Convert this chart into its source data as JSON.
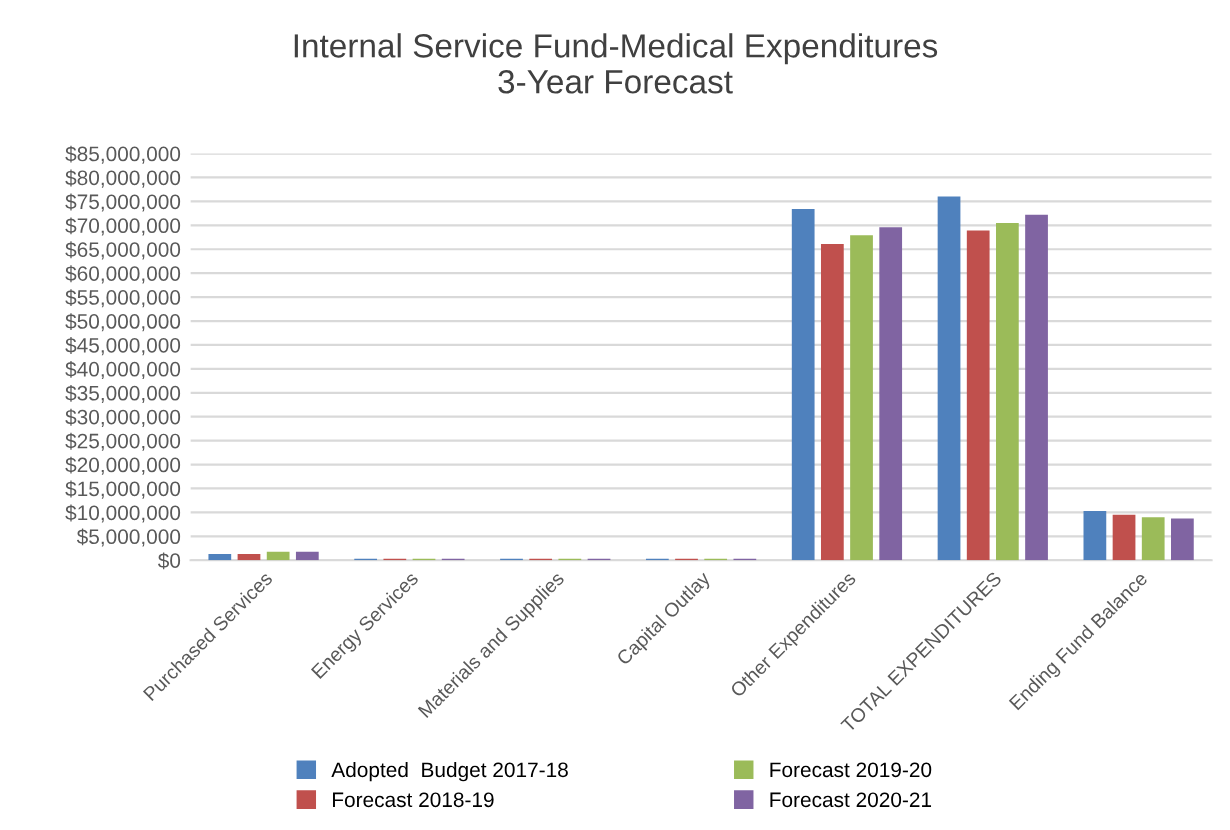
{
  "chart_data": {
    "type": "bar",
    "title": "Internal Service Fund-Medical Expenditures\n3-Year Forecast",
    "categories": [
      "Purchased Services",
      "Energy Services",
      "Materials and Supplies",
      "Capital Outlay",
      "Other Expenditures",
      "TOTAL EXPENDITURES",
      "Ending Fund Balance"
    ],
    "series": [
      {
        "name": "Adopted  Budget 2017-18",
        "color": "#4f81bd",
        "values": [
          1300000,
          300000,
          300000,
          300000,
          73400000,
          76000000,
          10300000
        ]
      },
      {
        "name": "Forecast 2018-19",
        "color": "#c0504d",
        "values": [
          1300000,
          300000,
          300000,
          300000,
          66100000,
          68900000,
          9500000
        ]
      },
      {
        "name": "Forecast 2019-20",
        "color": "#9bbb59",
        "values": [
          1800000,
          300000,
          300000,
          300000,
          67900000,
          70500000,
          9000000
        ]
      },
      {
        "name": "Forecast 2020-21",
        "color": "#8064a2",
        "values": [
          1800000,
          300000,
          300000,
          300000,
          69600000,
          72200000,
          8700000
        ]
      }
    ],
    "ylim": [
      0,
      85000000
    ],
    "yticks": [
      {
        "value": 0,
        "label": "$0"
      },
      {
        "value": 5000000,
        "label": "$5,000,000"
      },
      {
        "value": 10000000,
        "label": "$10,000,000"
      },
      {
        "value": 15000000,
        "label": "$15,000,000"
      },
      {
        "value": 20000000,
        "label": "$20,000,000"
      },
      {
        "value": 25000000,
        "label": "$25,000,000"
      },
      {
        "value": 30000000,
        "label": "$30,000,000"
      },
      {
        "value": 35000000,
        "label": "$35,000,000"
      },
      {
        "value": 40000000,
        "label": "$40,000,000"
      },
      {
        "value": 45000000,
        "label": "$45,000,000"
      },
      {
        "value": 50000000,
        "label": "$50,000,000"
      },
      {
        "value": 55000000,
        "label": "$55,000,000"
      },
      {
        "value": 60000000,
        "label": "$60,000,000"
      },
      {
        "value": 65000000,
        "label": "$65,000,000"
      },
      {
        "value": 70000000,
        "label": "$70,000,000"
      },
      {
        "value": 75000000,
        "label": "$75,000,000"
      },
      {
        "value": 80000000,
        "label": "$80,000,000"
      },
      {
        "value": 85000000,
        "label": "$85,000,000"
      }
    ],
    "grid": "y",
    "legend": "bottom"
  }
}
